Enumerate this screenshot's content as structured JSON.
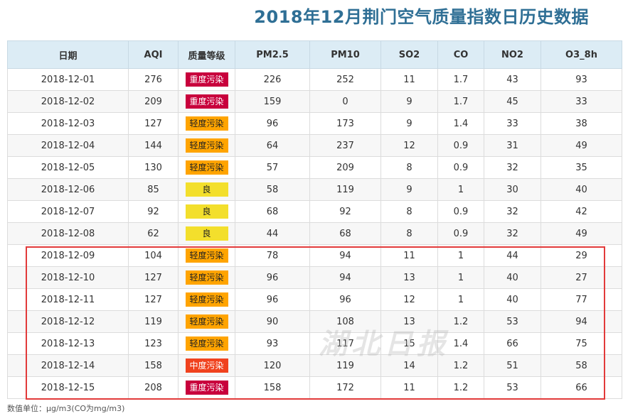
{
  "title": "2018年12月荆门空气质量指数日历史数据",
  "headers": [
    "日期",
    "AQI",
    "质量等级",
    "PM2.5",
    "PM10",
    "SO2",
    "CO",
    "NO2",
    "O3_8h"
  ],
  "level_colors": {
    "重度污染": {
      "bg": "#c8003c",
      "fg": "#ffffff"
    },
    "中度污染": {
      "bg": "#f0421e",
      "fg": "#ffffff"
    },
    "轻度污染": {
      "bg": "#ffa400",
      "fg": "#222222"
    },
    "良": {
      "bg": "#f3df2c",
      "fg": "#222222"
    }
  },
  "rows": [
    [
      "2018-12-01",
      "276",
      "重度污染",
      "226",
      "252",
      "11",
      "1.7",
      "43",
      "93"
    ],
    [
      "2018-12-02",
      "209",
      "重度污染",
      "159",
      "0",
      "9",
      "1.7",
      "45",
      "33"
    ],
    [
      "2018-12-03",
      "127",
      "轻度污染",
      "96",
      "173",
      "9",
      "1.4",
      "33",
      "38"
    ],
    [
      "2018-12-04",
      "144",
      "轻度污染",
      "64",
      "237",
      "12",
      "0.9",
      "31",
      "49"
    ],
    [
      "2018-12-05",
      "130",
      "轻度污染",
      "57",
      "209",
      "8",
      "0.9",
      "32",
      "35"
    ],
    [
      "2018-12-06",
      "85",
      "良",
      "58",
      "119",
      "9",
      "1",
      "30",
      "40"
    ],
    [
      "2018-12-07",
      "92",
      "良",
      "68",
      "92",
      "8",
      "0.9",
      "32",
      "42"
    ],
    [
      "2018-12-08",
      "62",
      "良",
      "44",
      "68",
      "8",
      "0.9",
      "32",
      "49"
    ],
    [
      "2018-12-09",
      "104",
      "轻度污染",
      "78",
      "94",
      "11",
      "1",
      "44",
      "29"
    ],
    [
      "2018-12-10",
      "127",
      "轻度污染",
      "96",
      "94",
      "13",
      "1",
      "40",
      "27"
    ],
    [
      "2018-12-11",
      "127",
      "轻度污染",
      "96",
      "96",
      "12",
      "1",
      "40",
      "77"
    ],
    [
      "2018-12-12",
      "119",
      "轻度污染",
      "90",
      "108",
      "13",
      "1.2",
      "53",
      "94"
    ],
    [
      "2018-12-13",
      "123",
      "轻度污染",
      "93",
      "117",
      "15",
      "1.4",
      "66",
      "75"
    ],
    [
      "2018-12-14",
      "158",
      "中度污染",
      "120",
      "119",
      "14",
      "1.2",
      "51",
      "58"
    ],
    [
      "2018-12-15",
      "208",
      "重度污染",
      "158",
      "172",
      "11",
      "1.2",
      "53",
      "66"
    ]
  ],
  "watermark": "湖北日报",
  "footnote": "数值单位：μg/m3(CO为mg/m3)"
}
